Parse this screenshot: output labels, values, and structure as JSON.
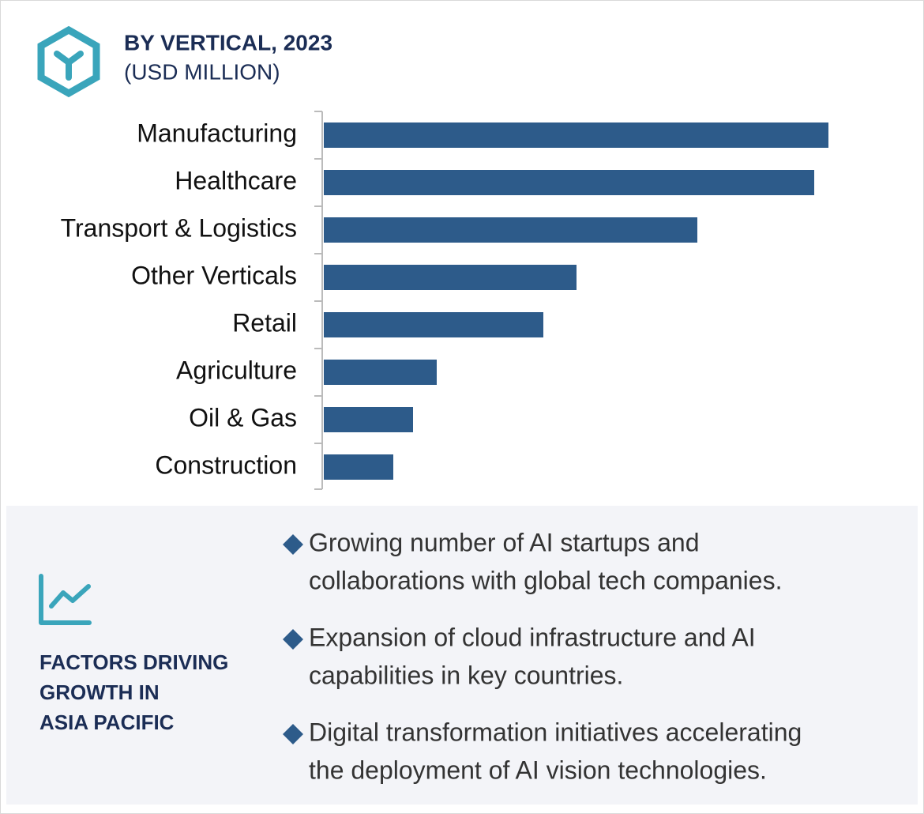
{
  "chart_data": {
    "type": "bar",
    "orientation": "horizontal",
    "title": "BY VERTICAL, 2023",
    "subtitle": "(USD MILLION)",
    "categories": [
      "Manufacturing",
      "Healthcare",
      "Transport & Logistics",
      "Other Verticals",
      "Retail",
      "Agriculture",
      "Oil & Gas",
      "Construction"
    ],
    "values": [
      639,
      621,
      473,
      320,
      278,
      143,
      113,
      88
    ],
    "color": "#2d5b8a",
    "xlim": [
      0,
      700
    ]
  },
  "factors": {
    "title_lines": [
      "FACTORS DRIVING",
      "GROWTH IN",
      "ASIA PACIFIC"
    ],
    "items": [
      [
        "Growing number of AI startups and",
        "collaborations with global tech companies."
      ],
      [
        "Expansion of cloud infrastructure and AI",
        "capabilities in key countries."
      ],
      [
        "Digital transformation initiatives accelerating",
        "the deployment of AI vision technologies."
      ]
    ]
  }
}
